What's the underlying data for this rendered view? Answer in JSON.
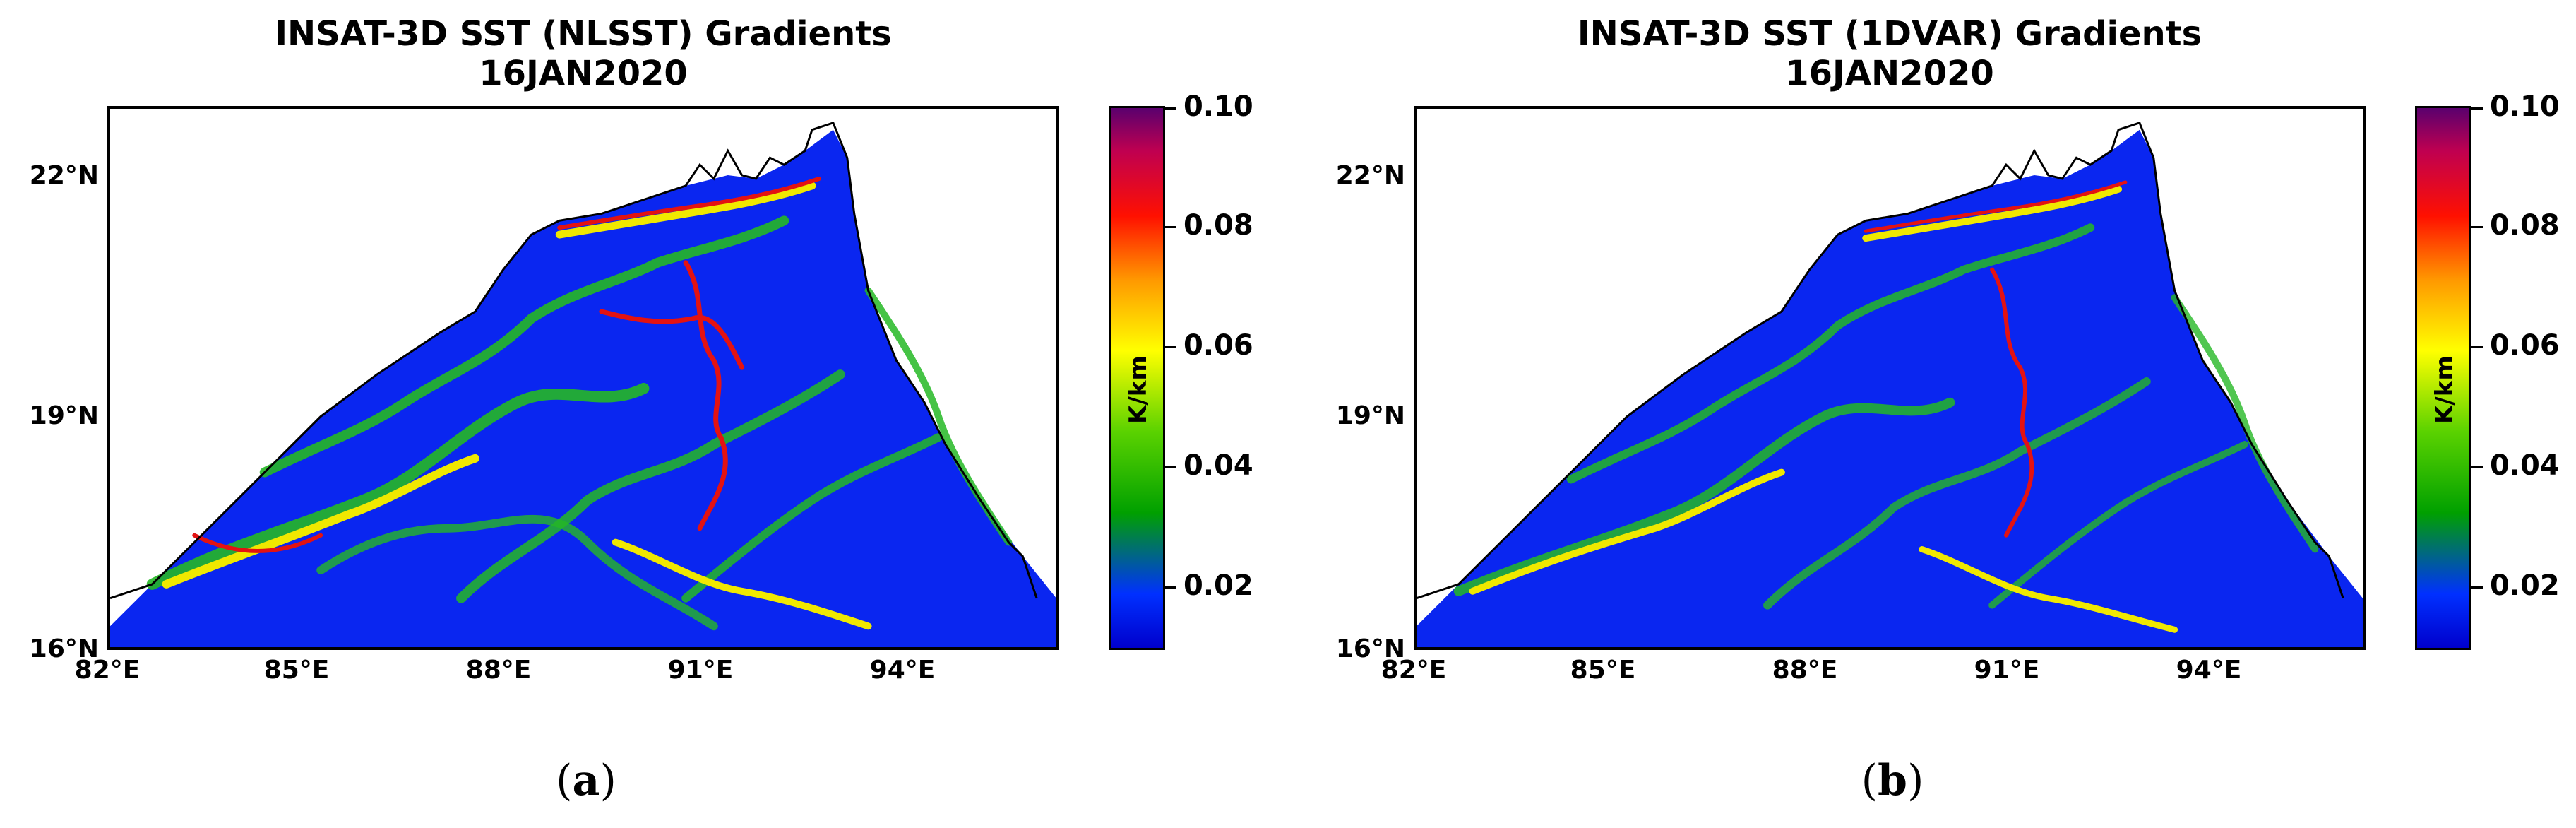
{
  "panels": [
    {
      "title_line1": "INSAT-3D SST (NLSST) Gradients",
      "title_line2": "16JAN2020",
      "y_ticks": [
        "22°N",
        "19°N",
        "16°N"
      ],
      "x_ticks": [
        "82°E",
        "85°E",
        "88°E",
        "91°E",
        "94°E"
      ],
      "colorbar": {
        "ticks": [
          "0.10",
          "0.08",
          "0.06",
          "0.04",
          "0.02"
        ],
        "unit": "K/km"
      },
      "sublabel_open": "(",
      "sublabel_letter": "a",
      "sublabel_close": ")"
    },
    {
      "title_line1": "INSAT-3D SST (1DVAR) Gradients",
      "title_line2": "16JAN2020",
      "y_ticks": [
        "22°N",
        "19°N",
        "16°N"
      ],
      "x_ticks": [
        "82°E",
        "85°E",
        "88°E",
        "91°E",
        "94°E"
      ],
      "colorbar": {
        "ticks": [
          "0.10",
          "0.08",
          "0.06",
          "0.04",
          "0.02"
        ],
        "unit": "K/km"
      },
      "sublabel_open": "(",
      "sublabel_letter": "b",
      "sublabel_close": ")"
    }
  ],
  "colors": {
    "ocean_low": "#0022ee",
    "front_green": "#20b020",
    "front_yellow": "#f5f000",
    "front_red": "#e81010",
    "coastline": "#000000",
    "land": "#ffffff"
  }
}
